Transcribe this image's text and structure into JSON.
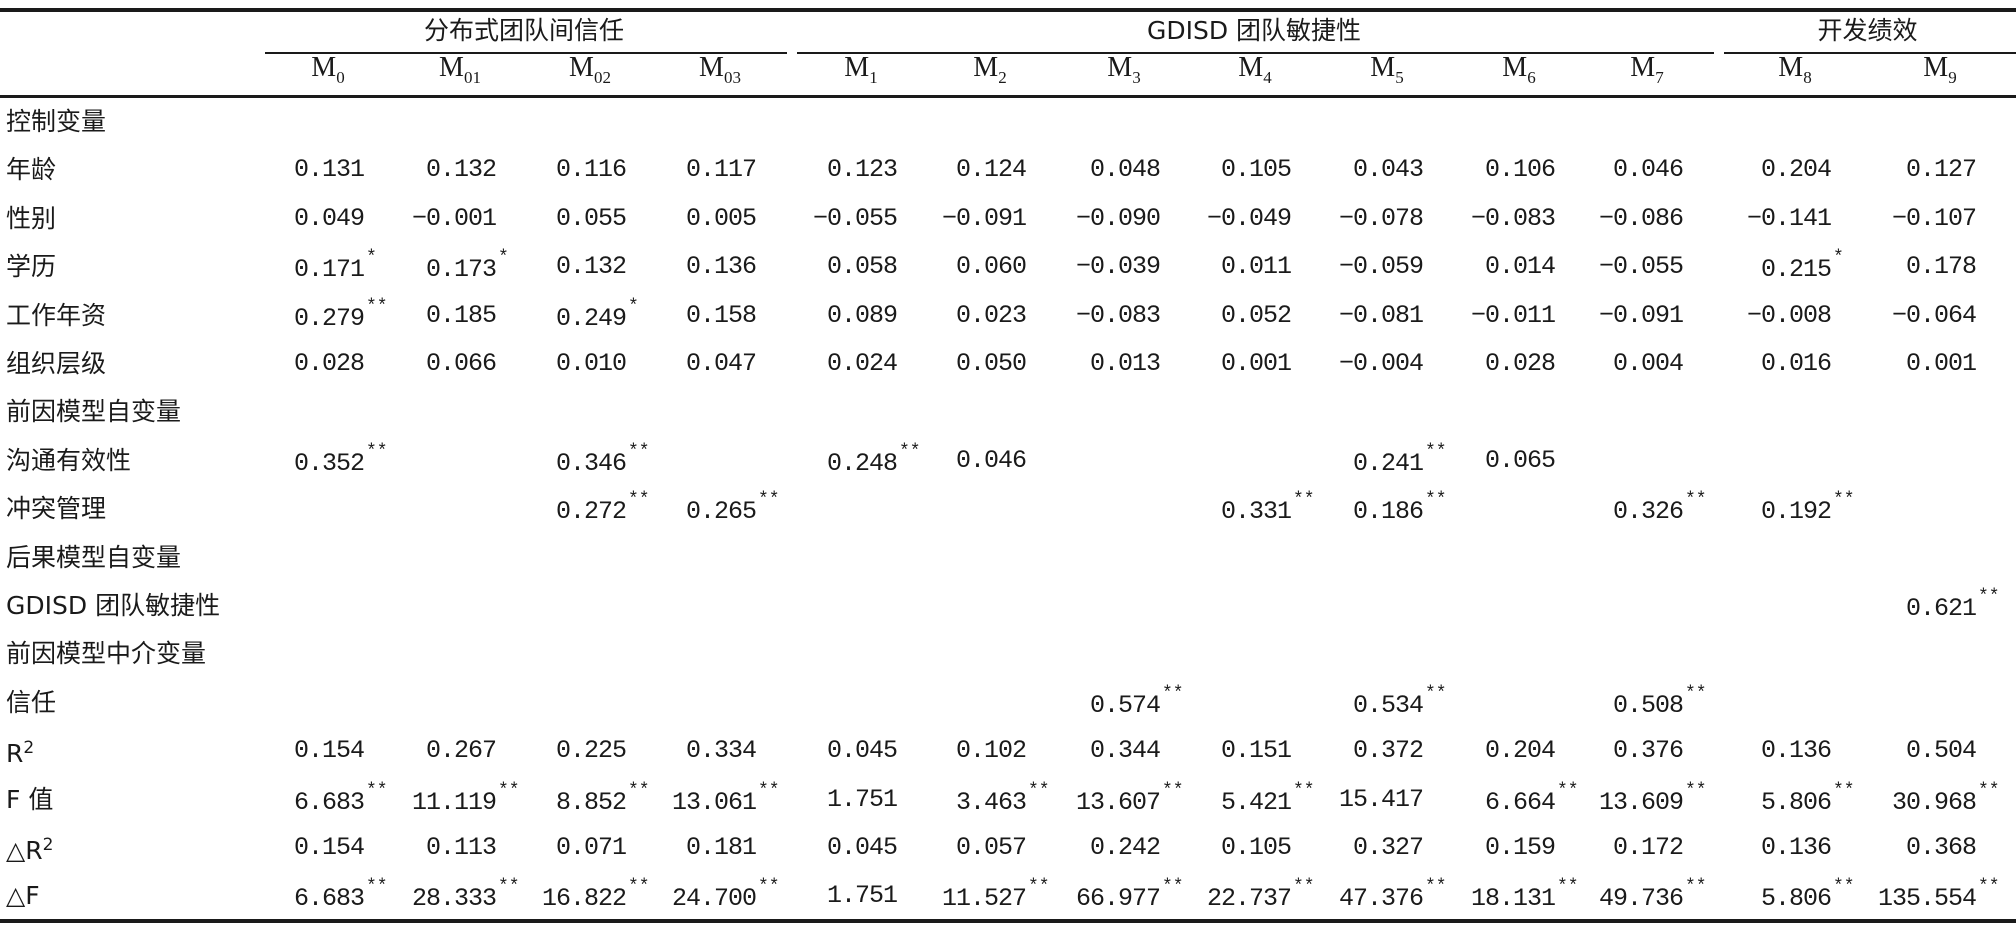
{
  "groups": [
    {
      "label": "分布式团队间信任",
      "from": 0,
      "to": 3
    },
    {
      "label": "GDISD 团队敏捷性",
      "from": 4,
      "to": 10
    },
    {
      "label": "开发绩效",
      "from": 11,
      "to": 12
    }
  ],
  "models": [
    {
      "base": "M",
      "sub": "0"
    },
    {
      "base": "M",
      "sub": "01"
    },
    {
      "base": "M",
      "sub": "02"
    },
    {
      "base": "M",
      "sub": "03"
    },
    {
      "base": "M",
      "sub": "1"
    },
    {
      "base": "M",
      "sub": "2"
    },
    {
      "base": "M",
      "sub": "3"
    },
    {
      "base": "M",
      "sub": "4"
    },
    {
      "base": "M",
      "sub": "5"
    },
    {
      "base": "M",
      "sub": "6"
    },
    {
      "base": "M",
      "sub": "7"
    },
    {
      "base": "M",
      "sub": "8"
    },
    {
      "base": "M",
      "sub": "9"
    }
  ],
  "rows": [
    {
      "label": "控制变量",
      "cells": []
    },
    {
      "label": "年龄",
      "cells": [
        [
          "0.131",
          ""
        ],
        [
          "0.132",
          ""
        ],
        [
          "0.116",
          ""
        ],
        [
          "0.117",
          ""
        ],
        [
          "0.123",
          ""
        ],
        [
          "0.124",
          ""
        ],
        [
          "0.048",
          ""
        ],
        [
          "0.105",
          ""
        ],
        [
          "0.043",
          ""
        ],
        [
          "0.106",
          ""
        ],
        [
          "0.046",
          ""
        ],
        [
          "0.204",
          ""
        ],
        [
          "0.127",
          ""
        ]
      ]
    },
    {
      "label": "性别",
      "cells": [
        [
          "0.049",
          ""
        ],
        [
          "−0.001",
          ""
        ],
        [
          "0.055",
          ""
        ],
        [
          "0.005",
          ""
        ],
        [
          "−0.055",
          ""
        ],
        [
          "−0.091",
          ""
        ],
        [
          "−0.090",
          ""
        ],
        [
          "−0.049",
          ""
        ],
        [
          "−0.078",
          ""
        ],
        [
          "−0.083",
          ""
        ],
        [
          "−0.086",
          ""
        ],
        [
          "−0.141",
          ""
        ],
        [
          "−0.107",
          ""
        ]
      ]
    },
    {
      "label": "学历",
      "cells": [
        [
          "0.171",
          "*"
        ],
        [
          "0.173",
          "*"
        ],
        [
          "0.132",
          ""
        ],
        [
          "0.136",
          ""
        ],
        [
          "0.058",
          ""
        ],
        [
          "0.060",
          ""
        ],
        [
          "−0.039",
          ""
        ],
        [
          "0.011",
          ""
        ],
        [
          "−0.059",
          ""
        ],
        [
          "0.014",
          ""
        ],
        [
          "−0.055",
          ""
        ],
        [
          "0.215",
          "*"
        ],
        [
          "0.178",
          ""
        ]
      ]
    },
    {
      "label": "工作年资",
      "cells": [
        [
          "0.279",
          "**"
        ],
        [
          "0.185",
          ""
        ],
        [
          "0.249",
          "*"
        ],
        [
          "0.158",
          ""
        ],
        [
          "0.089",
          ""
        ],
        [
          "0.023",
          ""
        ],
        [
          "−0.083",
          ""
        ],
        [
          "0.052",
          ""
        ],
        [
          "−0.081",
          ""
        ],
        [
          "−0.011",
          ""
        ],
        [
          "−0.091",
          ""
        ],
        [
          "−0.008",
          ""
        ],
        [
          "−0.064",
          ""
        ]
      ]
    },
    {
      "label": "组织层级",
      "cells": [
        [
          "0.028",
          ""
        ],
        [
          "0.066",
          ""
        ],
        [
          "0.010",
          ""
        ],
        [
          "0.047",
          ""
        ],
        [
          "0.024",
          ""
        ],
        [
          "0.050",
          ""
        ],
        [
          "0.013",
          ""
        ],
        [
          "0.001",
          ""
        ],
        [
          "−0.004",
          ""
        ],
        [
          "0.028",
          ""
        ],
        [
          "0.004",
          ""
        ],
        [
          "0.016",
          ""
        ],
        [
          "0.001",
          ""
        ]
      ]
    },
    {
      "label": "前因模型自变量",
      "cells": []
    },
    {
      "label": "沟通有效性",
      "cells": [
        [
          "0.352",
          "**"
        ],
        null,
        [
          "0.346",
          "**"
        ],
        null,
        [
          "0.248",
          "**"
        ],
        [
          "0.046",
          ""
        ],
        null,
        null,
        [
          "0.241",
          "**"
        ],
        [
          "0.065",
          ""
        ],
        null,
        null,
        null
      ]
    },
    {
      "label": "冲突管理",
      "cells": [
        null,
        null,
        [
          "0.272",
          "**"
        ],
        [
          "0.265",
          "**"
        ],
        null,
        null,
        null,
        [
          "0.331",
          "**"
        ],
        [
          "0.186",
          "**"
        ],
        null,
        [
          "0.326",
          "**"
        ],
        [
          "0.192",
          "**"
        ],
        null
      ]
    },
    {
      "label": "后果模型自变量",
      "cells": []
    },
    {
      "label": "GDISD 团队敏捷性",
      "cells": [
        null,
        null,
        null,
        null,
        null,
        null,
        null,
        null,
        null,
        null,
        null,
        null,
        [
          "0.621",
          "**"
        ]
      ]
    },
    {
      "label": "前因模型中介变量",
      "cells": []
    },
    {
      "label": "信任",
      "cells": [
        null,
        null,
        null,
        null,
        null,
        null,
        [
          "0.574",
          "**"
        ],
        null,
        [
          "0.534",
          "**"
        ],
        null,
        [
          "0.508",
          "**"
        ],
        null,
        null
      ]
    },
    {
      "label": "R",
      "sup": "2",
      "cells": [
        [
          "0.154",
          ""
        ],
        [
          "0.267",
          ""
        ],
        [
          "0.225",
          ""
        ],
        [
          "0.334",
          ""
        ],
        [
          "0.045",
          ""
        ],
        [
          "0.102",
          ""
        ],
        [
          "0.344",
          ""
        ],
        [
          "0.151",
          ""
        ],
        [
          "0.372",
          ""
        ],
        [
          "0.204",
          ""
        ],
        [
          "0.376",
          ""
        ],
        [
          "0.136",
          ""
        ],
        [
          "0.504",
          ""
        ]
      ]
    },
    {
      "label": "F 值",
      "cells": [
        [
          "6.683",
          "**"
        ],
        [
          "11.119",
          "**"
        ],
        [
          "8.852",
          "**"
        ],
        [
          "13.061",
          "**"
        ],
        [
          "1.751",
          ""
        ],
        [
          "3.463",
          "**"
        ],
        [
          "13.607",
          "**"
        ],
        [
          "5.421",
          "**"
        ],
        [
          "15.417",
          ""
        ],
        [
          "6.664",
          "**"
        ],
        [
          "13.609",
          "**"
        ],
        [
          "5.806",
          "**"
        ],
        [
          "30.968",
          "**"
        ]
      ]
    },
    {
      "label": "△R",
      "sup": "2",
      "cells": [
        [
          "0.154",
          ""
        ],
        [
          "0.113",
          ""
        ],
        [
          "0.071",
          ""
        ],
        [
          "0.181",
          ""
        ],
        [
          "0.045",
          ""
        ],
        [
          "0.057",
          ""
        ],
        [
          "0.242",
          ""
        ],
        [
          "0.105",
          ""
        ],
        [
          "0.327",
          ""
        ],
        [
          "0.159",
          ""
        ],
        [
          "0.172",
          ""
        ],
        [
          "0.136",
          ""
        ],
        [
          "0.368",
          ""
        ]
      ]
    },
    {
      "label": "△F",
      "cells": [
        [
          "6.683",
          "**"
        ],
        [
          "28.333",
          "**"
        ],
        [
          "16.822",
          "**"
        ],
        [
          "24.700",
          "**"
        ],
        [
          "1.751",
          ""
        ],
        [
          "11.527",
          "**"
        ],
        [
          "66.977",
          "**"
        ],
        [
          "22.737",
          "**"
        ],
        [
          "47.376",
          "**"
        ],
        [
          "18.131",
          "**"
        ],
        [
          "49.736",
          "**"
        ],
        [
          "5.806",
          "**"
        ],
        [
          "135.554",
          "**"
        ]
      ]
    }
  ]
}
